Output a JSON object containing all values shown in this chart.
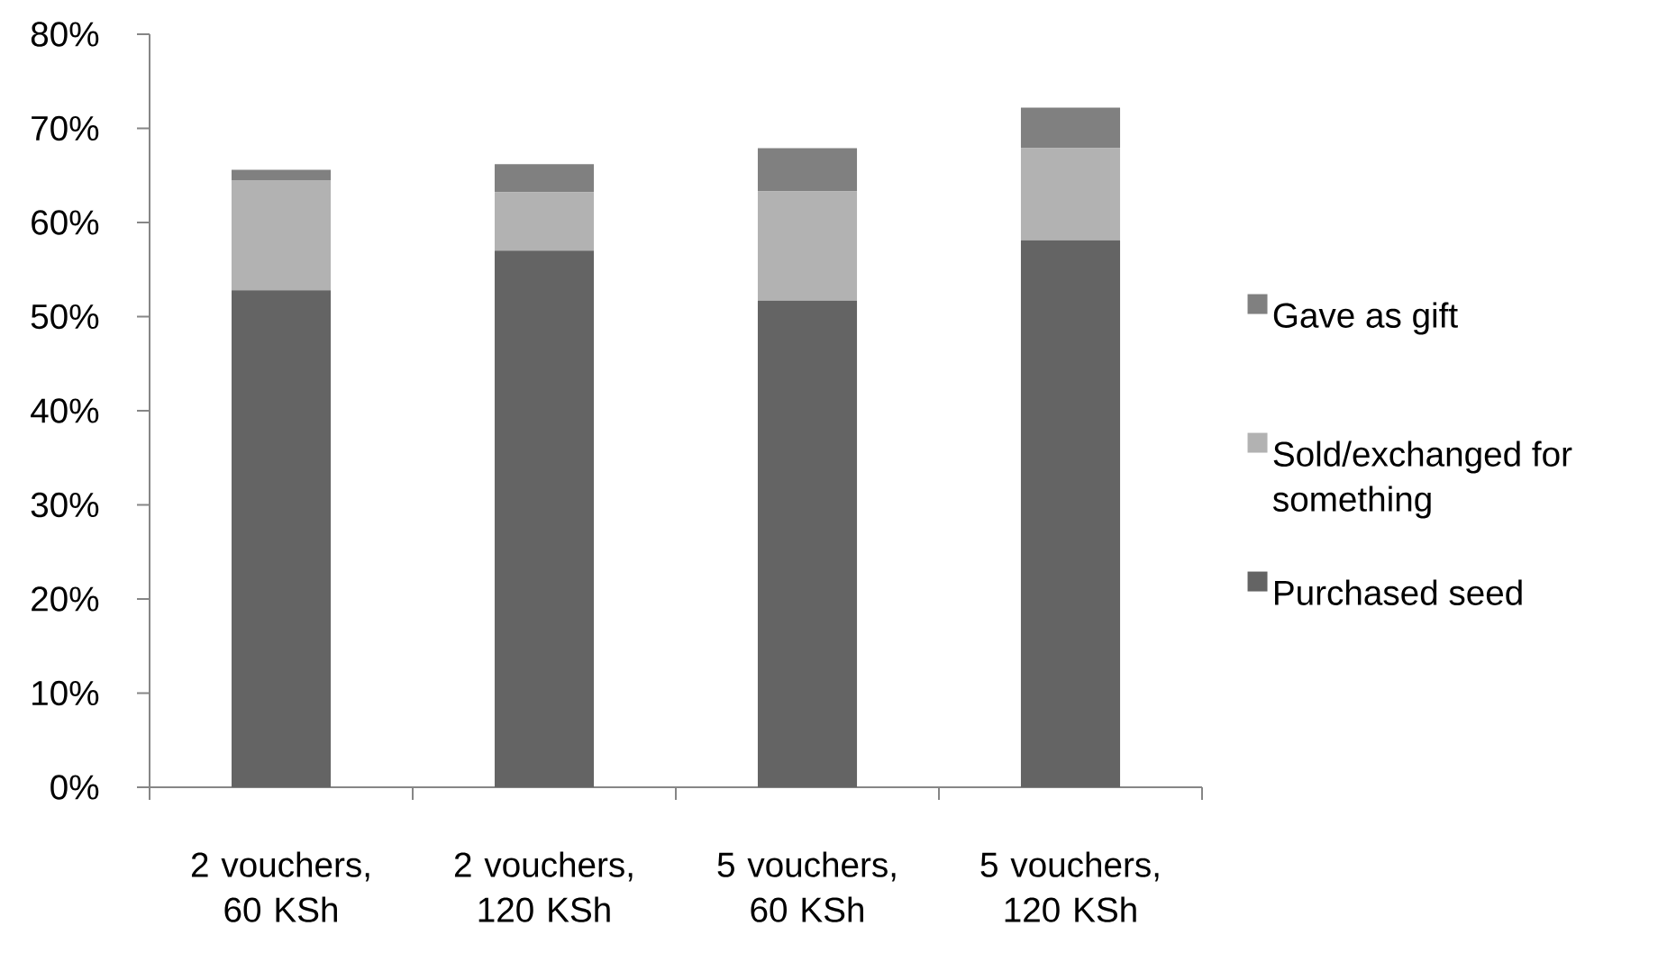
{
  "chart_data": {
    "type": "bar",
    "stacked": true,
    "categories": [
      "2 vouchers, 60 KSh",
      "2 vouchers, 120 KSh",
      "5 vouchers, 60 KSh",
      "5 vouchers, 120 KSh"
    ],
    "series": [
      {
        "name": "Purchased seed",
        "color": "#646464",
        "values": [
          52.8,
          57.0,
          51.7,
          58.1
        ]
      },
      {
        "name": "Sold/exchanged for something",
        "color": "#b2b2b2",
        "values": [
          11.7,
          6.2,
          11.6,
          9.8
        ]
      },
      {
        "name": "Gave as gift",
        "color": "#808080",
        "values": [
          1.1,
          3.0,
          4.6,
          4.3
        ]
      }
    ],
    "ylim": [
      0,
      80
    ],
    "yticks": [
      {
        "value": 0,
        "label": "0%"
      },
      {
        "value": 10,
        "label": "10%"
      },
      {
        "value": 20,
        "label": "20%"
      },
      {
        "value": 30,
        "label": "30%"
      },
      {
        "value": 40,
        "label": "40%"
      },
      {
        "value": 50,
        "label": "50%"
      },
      {
        "value": 60,
        "label": "60%"
      },
      {
        "value": 70,
        "label": "70%"
      },
      {
        "value": 80,
        "label": "80%"
      }
    ],
    "legend": "right"
  }
}
